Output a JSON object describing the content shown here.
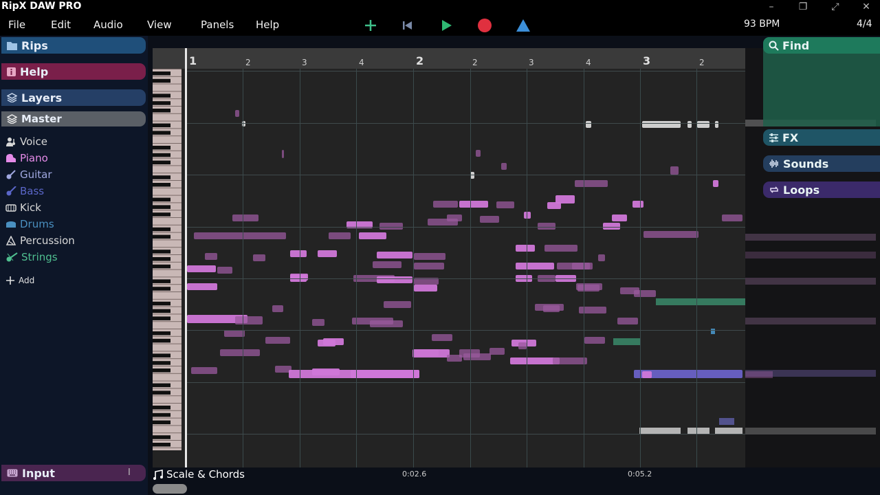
{
  "app": {
    "title": "RipX DAW PRO"
  },
  "window_controls": [
    "minimize-icon",
    "restore-icon",
    "fullscreen-icon",
    "close-icon"
  ],
  "menu": {
    "items": [
      "File",
      "Edit",
      "Audio",
      "View",
      "Panels",
      "Help"
    ]
  },
  "transport": {
    "add": "add-icon",
    "rewind": "rewind-icon",
    "play": "play-icon",
    "record": "record-icon",
    "metronome": "metronome-icon",
    "colors": {
      "add": "#3fbf8a",
      "play": "#2fb872",
      "record": "#e0303f",
      "metronome": "#3c8fd8"
    }
  },
  "status": {
    "bpm": "93 BPM",
    "time_signature": "4/4"
  },
  "sidebar": {
    "rips": "Rips",
    "help": "Help",
    "layers": "Layers",
    "master": "Master",
    "layers_list": [
      {
        "label": "Voice",
        "color": "#d8d8d8",
        "icon": "voice-icon"
      },
      {
        "label": "Piano",
        "color": "#e58be8",
        "icon": "piano-icon"
      },
      {
        "label": "Guitar",
        "color": "#a0a8e0",
        "icon": "guitar-icon"
      },
      {
        "label": "Bass",
        "color": "#5a66c8",
        "icon": "bass-icon"
      },
      {
        "label": "Kick",
        "color": "#d8d8d8",
        "icon": "kick-icon"
      },
      {
        "label": "Drums",
        "color": "#4a90c0",
        "icon": "drums-icon"
      },
      {
        "label": "Percussion",
        "color": "#d8d8d8",
        "icon": "percussion-icon"
      },
      {
        "label": "Strings",
        "color": "#4fbf90",
        "icon": "strings-icon"
      }
    ],
    "add": "Add",
    "input": "Input"
  },
  "ruler": {
    "bars": [
      "1",
      "2",
      "3"
    ],
    "beats": [
      "2",
      "3",
      "4",
      "2",
      "3",
      "4",
      "2"
    ]
  },
  "right_panel": {
    "find": "Find",
    "fx": "FX",
    "sounds": "Sounds",
    "loops": "Loops"
  },
  "bottom": {
    "scale_chords": "Scale & Chords",
    "times": [
      "0:02.6",
      "0:05.2"
    ]
  }
}
